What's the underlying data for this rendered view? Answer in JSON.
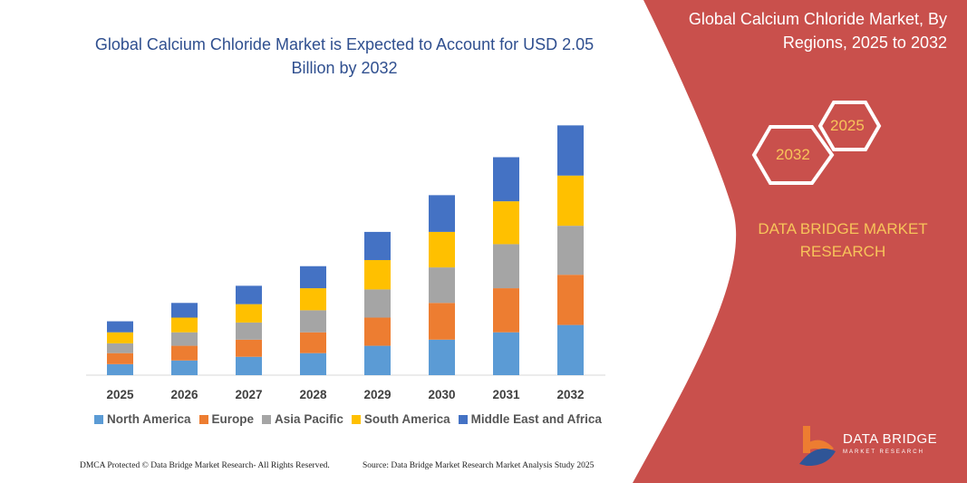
{
  "header": {
    "title": "Global Calcium Chloride Market is Expected to Account for USD 2.05 Billion by 2032"
  },
  "side_panel": {
    "title": "Global Calcium Chloride Market, By Regions, 2025 to 2032",
    "hex_labels": [
      "2032",
      "2025"
    ],
    "brand": "DATA BRIDGE MARKET RESEARCH",
    "logo_text": "DATA BRIDGE",
    "logo_subtext": "MARKET RESEARCH",
    "panel_color": "#c9504c"
  },
  "footer": {
    "copyright": "DMCA Protected © Data Bridge Market Research- All Rights Reserved.",
    "source": "Source: Data Bridge Market Research Market Analysis Study 2025"
  },
  "chart_data": {
    "type": "bar",
    "stacked": true,
    "title": "Global Calcium Chloride Market is Expected to Account for USD 2.05 Billion by 2032",
    "categories": [
      "2025",
      "2026",
      "2027",
      "2028",
      "2029",
      "2030",
      "2031",
      "2032"
    ],
    "series": [
      {
        "name": "North America",
        "color": "#5b9bd5",
        "values": [
          0.09,
          0.12,
          0.15,
          0.18,
          0.24,
          0.29,
          0.35,
          0.41
        ]
      },
      {
        "name": "Europe",
        "color": "#ed7d31",
        "values": [
          0.09,
          0.12,
          0.14,
          0.17,
          0.23,
          0.3,
          0.36,
          0.41
        ]
      },
      {
        "name": "Asia Pacific",
        "color": "#a5a5a5",
        "values": [
          0.08,
          0.11,
          0.14,
          0.18,
          0.23,
          0.29,
          0.36,
          0.4
        ]
      },
      {
        "name": "South America",
        "color": "#ffc000",
        "values": [
          0.09,
          0.12,
          0.15,
          0.18,
          0.24,
          0.29,
          0.35,
          0.41
        ]
      },
      {
        "name": "Middle East and Africa",
        "color": "#4472c4",
        "values": [
          0.09,
          0.12,
          0.15,
          0.18,
          0.23,
          0.3,
          0.36,
          0.41
        ]
      }
    ],
    "ylim": [
      0,
      2.05
    ],
    "grid": false,
    "legend": "bottom"
  }
}
